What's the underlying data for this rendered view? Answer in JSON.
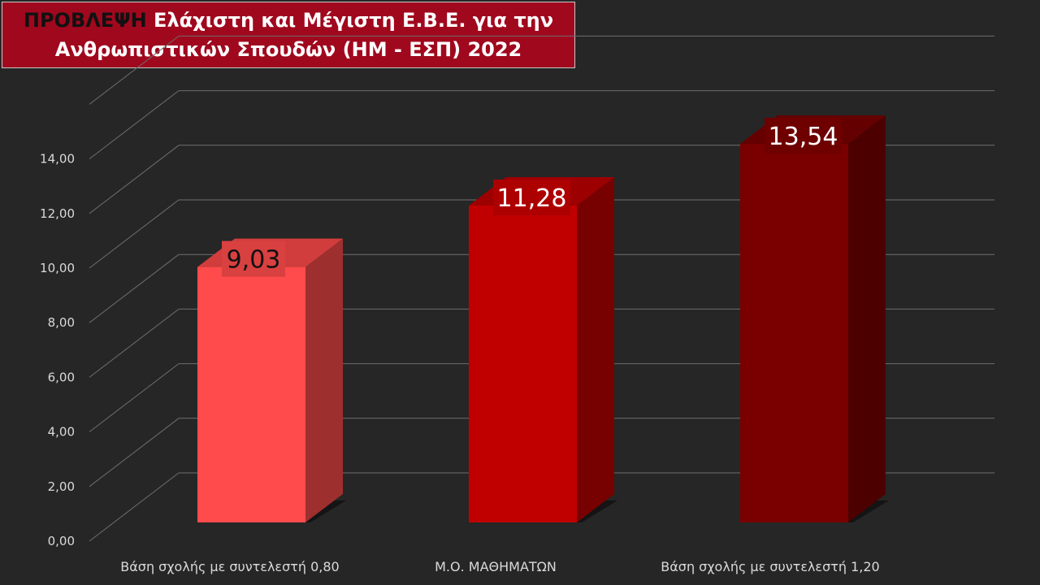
{
  "title": {
    "prefix": "ΠΡΟΒΛΕΨΗ",
    "line1_rest": " Ελάχιστη και Μέγιστη Ε.Β.Ε. για την",
    "line2": "Ανθρωπιστικών Σπουδών (ΗΜ - ΕΣΠ) 2022"
  },
  "colors": {
    "background": "#262626",
    "title_bg": "#a0081e",
    "bar1": "#ff4b4b",
    "bar2": "#c00000",
    "bar3": "#7a0000"
  },
  "chart_data": {
    "type": "bar",
    "style": "3d-column",
    "categories": [
      "Βάση σχολής με συντελεστή 0,80",
      "Μ.Ο. ΜΑΘΗΜΑΤΩΝ",
      "Βάση σχολής με συντελεστή 1,20"
    ],
    "values": [
      9.03,
      11.28,
      13.54
    ],
    "data_labels": [
      "9,03",
      "11,28",
      "13,54"
    ],
    "y_ticks": [
      "0,00",
      "2,00",
      "4,00",
      "6,00",
      "8,00",
      "10,00",
      "12,00",
      "14,00"
    ],
    "ylim": [
      0,
      16
    ],
    "grid": true,
    "legend": "none"
  }
}
